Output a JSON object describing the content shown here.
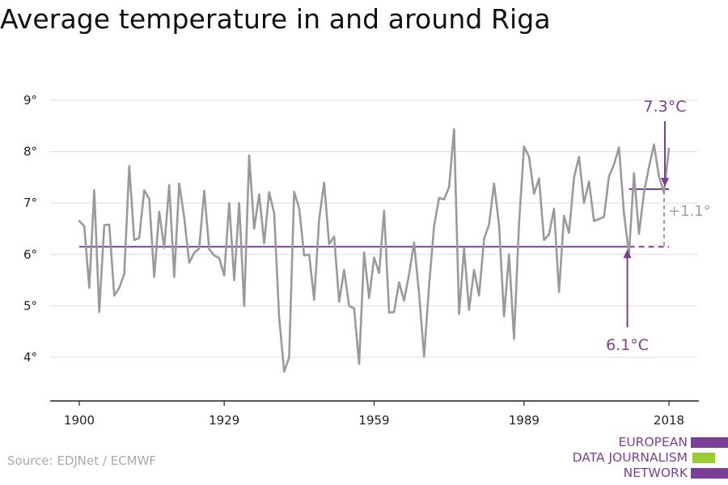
{
  "title": "Average temperature in and around Riga",
  "source": "Source: EDJNet / ECMWF",
  "logo": {
    "line1": "EUROPEAN",
    "line2": "DATA JOURNALISM",
    "line3": "NETWORK",
    "colors": [
      "#7b3f98",
      "#9acd32",
      "#7b3f98"
    ]
  },
  "colors": {
    "series": "#9a9a9a",
    "accent": "#7b3f98",
    "grid": "#dddddd",
    "axis": "#222222",
    "diff": "#a0a0a0"
  },
  "chart_data": {
    "type": "line",
    "title": "Average temperature in and around Riga",
    "xlabel": "",
    "ylabel": "",
    "xlim": [
      1900,
      2018
    ],
    "ylim": [
      3.5,
      9.0
    ],
    "x_ticks": [
      1900,
      1929,
      1959,
      1989,
      2018
    ],
    "x_tick_labels": [
      "1900",
      "1929",
      "1959",
      "1989",
      "2018"
    ],
    "y_ticks": [
      4,
      5,
      6,
      7,
      8,
      9
    ],
    "y_tick_labels": [
      "4°",
      "5°",
      "6°",
      "7°",
      "8°",
      "9°"
    ],
    "grid": "horizontal",
    "series": [
      {
        "x_start": 1900,
        "values": [
          6.65,
          6.55,
          5.35,
          7.25,
          4.88,
          6.57,
          6.58,
          5.2,
          5.35,
          5.62,
          7.72,
          6.28,
          6.32,
          7.25,
          7.08,
          5.56,
          6.83,
          6.13,
          7.35,
          5.56,
          7.38,
          6.72,
          5.84,
          6.03,
          6.12,
          7.24,
          6.1,
          5.98,
          5.93,
          5.59,
          7.0,
          5.5,
          7.0,
          5.0,
          7.93,
          6.5,
          7.17,
          6.22,
          7.21,
          6.8,
          4.77,
          3.72,
          4.0,
          7.22,
          6.9,
          5.98,
          6.0,
          5.12,
          6.68,
          7.4,
          6.2,
          6.35,
          5.08,
          5.7,
          5.0,
          4.95,
          3.87,
          6.04,
          5.15,
          5.94,
          5.64,
          6.85,
          4.87,
          4.88,
          5.46,
          5.1,
          5.62,
          6.23,
          5.23,
          4.02,
          5.4,
          6.55,
          7.1,
          7.07,
          7.31,
          8.44,
          4.84,
          6.12,
          4.92,
          5.7,
          5.2,
          6.3,
          6.58,
          7.38,
          6.58,
          4.8,
          6.0,
          4.36,
          6.6,
          8.1,
          7.9,
          7.18,
          7.48,
          6.28,
          6.39,
          6.89,
          5.27,
          6.75,
          6.42,
          7.49,
          7.9,
          7.0,
          7.42,
          6.65,
          6.69,
          6.73,
          7.52,
          7.75,
          8.08,
          6.8,
          6.0,
          7.58,
          6.4,
          7.2,
          7.7,
          8.14,
          7.52,
          7.2,
          8.06
        ]
      }
    ],
    "reference_lines": [
      {
        "label": "6.1°C",
        "value": 6.15,
        "from": 1900,
        "to": 2018,
        "dashed_after": 2010
      },
      {
        "label": "7.3°C",
        "value": 7.27,
        "from": 2010,
        "to": 2018
      }
    ],
    "annotations": [
      {
        "text": "7.3°C",
        "x": 2018,
        "y": 7.27
      },
      {
        "text": "6.1°C",
        "x": 2010,
        "y": 6.15
      },
      {
        "text": "+1.1°",
        "x": 2018,
        "y": 6.7
      }
    ]
  }
}
